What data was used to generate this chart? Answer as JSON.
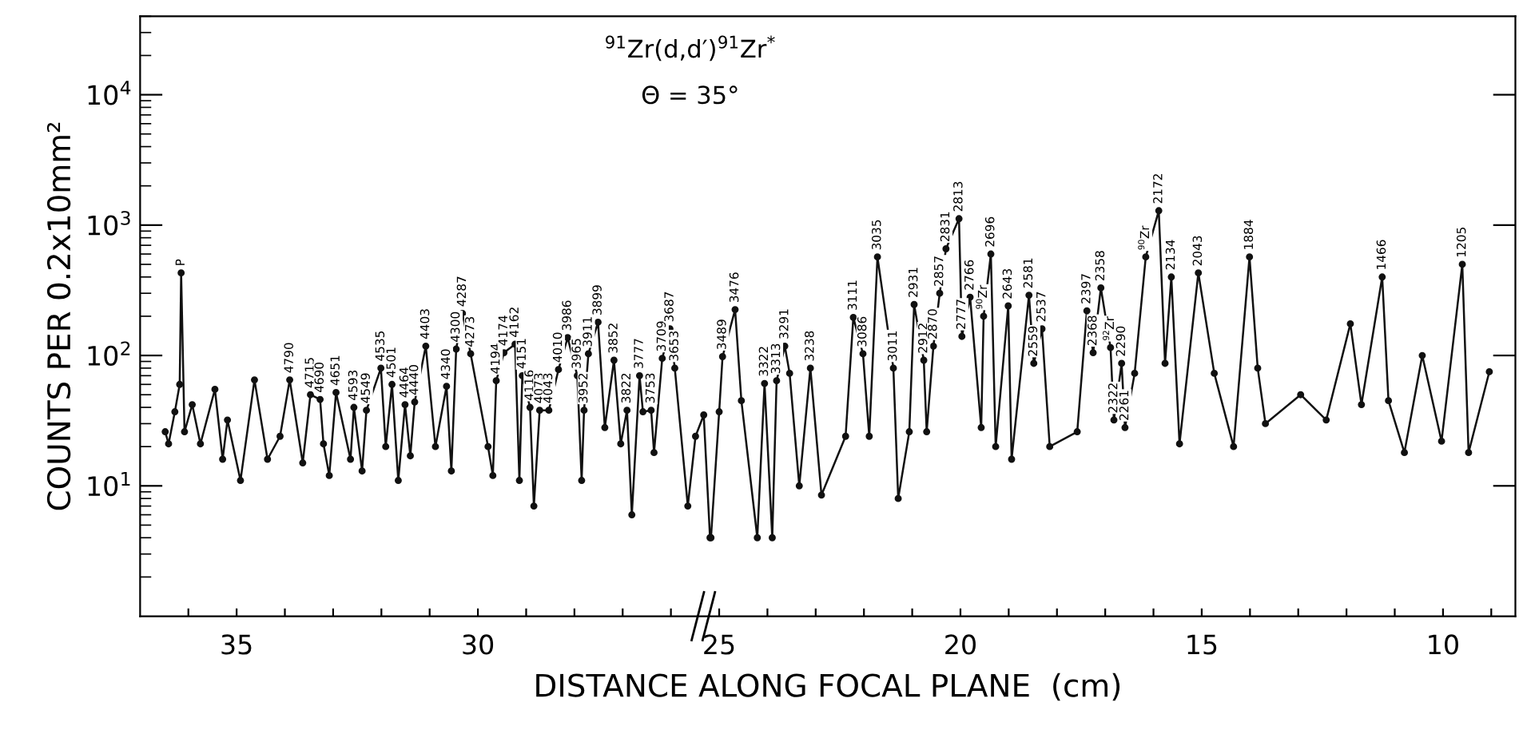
{
  "chart_data": {
    "type": "line",
    "title": "$^{91}$Zr(d,d′)$^{91}$Zr$^{*}$",
    "subtitle": "Θ = 35°",
    "xlabel": "DISTANCE ALONG FOCAL PLANE  (cm)",
    "ylabel": "COUNTS PER 0.2x10mm²",
    "log": "y",
    "grid": false,
    "legend": false,
    "marker": "circle",
    "line_style": "solid",
    "xlim": [
      37,
      8.5
    ],
    "xticks": [
      {
        "value": 36,
        "label": null
      },
      35,
      {
        "value": 34,
        "label": null
      },
      {
        "value": 33,
        "label": null
      },
      {
        "value": 32,
        "label": null
      },
      {
        "value": 31,
        "label": null
      },
      30,
      {
        "value": 29,
        "label": null
      },
      {
        "value": 28,
        "label": null
      },
      {
        "value": 27,
        "label": null
      },
      {
        "value": 26,
        "label": null
      },
      25,
      {
        "value": 24,
        "label": null
      },
      {
        "value": 23,
        "label": null
      },
      {
        "value": 22,
        "label": null
      },
      {
        "value": 21,
        "label": null
      },
      20,
      {
        "value": 19,
        "label": null
      },
      {
        "value": 18,
        "label": null
      },
      {
        "value": 17,
        "label": null
      },
      {
        "value": 16,
        "label": null
      },
      15,
      {
        "value": 14,
        "label": null
      },
      {
        "value": 13,
        "label": null
      },
      {
        "value": 12,
        "label": null
      },
      {
        "value": 11,
        "label": null
      },
      10,
      {
        "value": 9,
        "label": null
      }
    ],
    "ylim": [
      1,
      40000
    ],
    "yticks": [
      {
        "value": 10,
        "label": "10$^{1}$"
      },
      {
        "value": 100,
        "label": "10$^{2}$"
      },
      {
        "value": 1000,
        "label": "10$^{3}$"
      },
      {
        "value": 10000,
        "label": "10$^{4}$"
      }
    ],
    "series": [
      {
        "color": "#111111",
        "x": [
          36.48,
          36.41,
          36.28,
          36.18,
          36.15,
          36.08,
          35.92,
          35.75,
          35.45,
          35.29,
          35.19,
          34.92,
          34.63,
          34.36,
          34.1,
          33.9,
          33.63,
          33.47,
          33.27,
          33.2,
          33.08,
          32.94,
          32.64,
          32.57,
          32.4,
          32.31,
          32.01,
          31.91,
          31.78,
          31.65,
          31.51,
          31.4,
          31.31,
          31.08,
          30.88,
          30.65,
          30.55,
          30.45,
          30.32,
          30.15,
          29.79,
          29.69,
          29.62,
          29.46,
          29.23,
          29.14,
          29.08,
          28.92,
          28.84,
          28.72,
          28.53,
          28.33,
          28.14,
          27.94,
          27.85,
          27.8,
          27.71,
          27.51,
          27.37,
          27.18,
          27.04,
          26.91,
          26.81,
          26.65,
          26.58,
          26.41,
          26.35,
          26.18,
          26.02,
          25.92,
          25.65,
          25.49,
          25.32,
          25.19,
          25.17,
          25.0,
          24.93,
          24.67,
          24.54,
          24.21,
          24.06,
          23.9,
          23.81,
          23.64,
          23.54,
          23.34,
          23.11,
          22.88,
          22.38,
          22.22,
          22.02,
          21.89,
          21.72,
          21.39,
          21.29,
          21.06,
          20.96,
          20.76,
          20.7,
          20.56,
          20.43,
          20.3,
          20.03,
          19.97,
          19.8,
          19.57,
          19.52,
          19.37,
          19.27,
          19.01,
          18.94,
          18.58,
          18.48,
          18.31,
          18.15,
          17.58,
          17.38,
          17.25,
          17.09,
          16.89,
          16.82,
          16.66,
          16.59,
          16.39,
          16.16,
          15.89,
          15.76,
          15.63,
          15.46,
          15.07,
          14.74,
          14.34,
          14.01,
          13.84,
          13.68,
          12.95,
          12.42,
          11.92,
          11.69,
          11.26,
          11.13,
          10.8,
          10.43,
          10.03,
          9.6,
          9.47,
          9.04
        ],
        "values": [
          26,
          21,
          37,
          60,
          430,
          26,
          42,
          21,
          55,
          16,
          32,
          11,
          65,
          16,
          24,
          65,
          15,
          50,
          46,
          21,
          12,
          52,
          16,
          40,
          13,
          38,
          80,
          20,
          60,
          11,
          42,
          17,
          44,
          118,
          20,
          58,
          13,
          112,
          210,
          103,
          20,
          12,
          64,
          105,
          122,
          11,
          70,
          40,
          7,
          38,
          38,
          78,
          137,
          70,
          11,
          38,
          103,
          180,
          28,
          92,
          21,
          38,
          6,
          70,
          37,
          38,
          18,
          95,
          160,
          80,
          7,
          24,
          35,
          4,
          4,
          37,
          98,
          225,
          45,
          4,
          61,
          4,
          64,
          118,
          73,
          10,
          80,
          8.5,
          24,
          196,
          103,
          24,
          570,
          80,
          8,
          26,
          246,
          92,
          26,
          118,
          300,
          658,
          1120,
          140,
          280,
          28,
          200,
          600,
          20,
          240,
          16,
          290,
          87,
          160,
          20,
          26,
          220,
          105,
          330,
          115,
          32,
          87,
          28,
          73,
          570,
          1290,
          87,
          400,
          21,
          430,
          73,
          20,
          570,
          80,
          30,
          50,
          32,
          175,
          42,
          400,
          45,
          18,
          100,
          22,
          500,
          18,
          75
        ]
      }
    ],
    "annotations": [
      {
        "text": "P",
        "x": 36.15,
        "y": 430
      },
      {
        "text": "4790",
        "x": 33.9,
        "y": 65
      },
      {
        "text": "4715",
        "x": 33.47,
        "y": 50
      },
      {
        "text": "4690",
        "x": 33.27,
        "y": 46
      },
      {
        "text": "4651",
        "x": 32.94,
        "y": 52
      },
      {
        "text": "4593",
        "x": 32.57,
        "y": 40
      },
      {
        "text": "4549",
        "x": 32.31,
        "y": 38
      },
      {
        "text": "4535",
        "x": 32.01,
        "y": 80
      },
      {
        "text": "4501",
        "x": 31.78,
        "y": 60
      },
      {
        "text": "4464",
        "x": 31.51,
        "y": 42
      },
      {
        "text": "4440",
        "x": 31.31,
        "y": 44
      },
      {
        "text": "4403",
        "x": 31.08,
        "y": 118
      },
      {
        "text": "4340",
        "x": 30.65,
        "y": 58
      },
      {
        "text": "4300",
        "x": 30.45,
        "y": 112
      },
      {
        "text": "4287",
        "x": 30.32,
        "y": 210
      },
      {
        "text": "4273",
        "x": 30.15,
        "y": 103
      },
      {
        "text": "4194",
        "x": 29.62,
        "y": 64
      },
      {
        "text": "4174",
        "x": 29.46,
        "y": 105
      },
      {
        "text": "4162",
        "x": 29.23,
        "y": 122
      },
      {
        "text": "4151",
        "x": 29.08,
        "y": 70
      },
      {
        "text": "4116",
        "x": 28.92,
        "y": 40
      },
      {
        "text": "4073",
        "x": 28.72,
        "y": 38
      },
      {
        "text": "4043",
        "x": 28.53,
        "y": 38
      },
      {
        "text": "4010",
        "x": 28.33,
        "y": 78
      },
      {
        "text": "3986",
        "x": 28.14,
        "y": 137
      },
      {
        "text": "3965",
        "x": 27.94,
        "y": 70
      },
      {
        "text": "3952",
        "x": 27.8,
        "y": 38
      },
      {
        "text": "3911",
        "x": 27.71,
        "y": 103
      },
      {
        "text": "3899",
        "x": 27.51,
        "y": 180
      },
      {
        "text": "3852",
        "x": 27.18,
        "y": 92
      },
      {
        "text": "3822",
        "x": 26.91,
        "y": 38
      },
      {
        "text": "3777",
        "x": 26.65,
        "y": 70
      },
      {
        "text": "3753",
        "x": 26.41,
        "y": 38
      },
      {
        "text": "3709",
        "x": 26.18,
        "y": 95
      },
      {
        "text": "3687",
        "x": 26.02,
        "y": 160
      },
      {
        "text": "3653",
        "x": 25.92,
        "y": 80
      },
      {
        "text": "3489",
        "x": 24.93,
        "y": 98
      },
      {
        "text": "3476",
        "x": 24.67,
        "y": 225
      },
      {
        "text": "3322",
        "x": 24.06,
        "y": 61
      },
      {
        "text": "3313",
        "x": 23.81,
        "y": 64
      },
      {
        "text": "3291",
        "x": 23.64,
        "y": 118
      },
      {
        "text": "3238",
        "x": 23.11,
        "y": 80
      },
      {
        "text": "3111",
        "x": 22.22,
        "y": 196
      },
      {
        "text": "3086",
        "x": 22.02,
        "y": 103
      },
      {
        "text": "3035",
        "x": 21.72,
        "y": 570
      },
      {
        "text": "3011",
        "x": 21.39,
        "y": 80
      },
      {
        "text": "2931",
        "x": 20.96,
        "y": 246
      },
      {
        "text": "2912",
        "x": 20.76,
        "y": 92
      },
      {
        "text": "2870",
        "x": 20.56,
        "y": 118
      },
      {
        "text": "2857",
        "x": 20.43,
        "y": 300
      },
      {
        "text": "2831",
        "x": 20.3,
        "y": 658
      },
      {
        "text": "2813",
        "x": 20.03,
        "y": 1120
      },
      {
        "text": "2777",
        "x": 19.97,
        "y": 140
      },
      {
        "text": "2766",
        "x": 19.8,
        "y": 280
      },
      {
        "text": "$^{90}$Zr",
        "x": 19.52,
        "y": 200
      },
      {
        "text": "2696",
        "x": 19.37,
        "y": 600
      },
      {
        "text": "2643",
        "x": 19.01,
        "y": 240
      },
      {
        "text": "2581",
        "x": 18.58,
        "y": 290
      },
      {
        "text": "2559",
        "x": 18.48,
        "y": 87
      },
      {
        "text": "2537",
        "x": 18.31,
        "y": 160
      },
      {
        "text": "2397",
        "x": 17.38,
        "y": 220
      },
      {
        "text": "2368",
        "x": 17.25,
        "y": 105
      },
      {
        "text": "2358",
        "x": 17.09,
        "y": 330
      },
      {
        "text": "$^{92}$Zr",
        "x": 16.89,
        "y": 115
      },
      {
        "text": "2322",
        "x": 16.82,
        "y": 32
      },
      {
        "text": "2290",
        "x": 16.66,
        "y": 87
      },
      {
        "text": "2261",
        "x": 16.59,
        "y": 28
      },
      {
        "text": "$^{90}$Zr",
        "x": 16.16,
        "y": 570
      },
      {
        "text": "2172",
        "x": 15.89,
        "y": 1290
      },
      {
        "text": "2134",
        "x": 15.63,
        "y": 400
      },
      {
        "text": "2043",
        "x": 15.07,
        "y": 430
      },
      {
        "text": "1884",
        "x": 14.01,
        "y": 570
      },
      {
        "text": "1466",
        "x": 11.26,
        "y": 400
      },
      {
        "text": "1205",
        "x": 9.6,
        "y": 500
      }
    ]
  }
}
